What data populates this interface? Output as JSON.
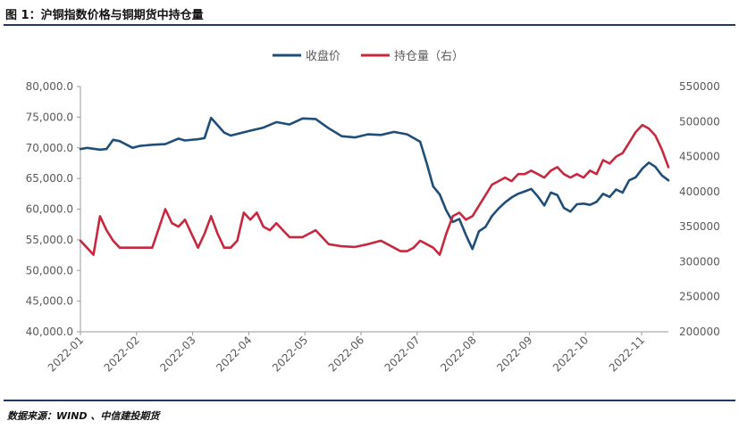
{
  "figure_title": "图 1：沪铜指数价格与铜期货中持仓量",
  "source_text": "数据来源：WIND 、中信建投期货",
  "colors": {
    "price": "#1f4e79",
    "oi": "#c8283f",
    "rule": "#1f3864",
    "axis": "#9a9a9a",
    "text": "#595959"
  },
  "chart_data": {
    "type": "line",
    "title": "",
    "legend_position": "top-center",
    "grid": false,
    "x_ticks": [
      "2022-01",
      "2022-02",
      "2022-03",
      "2022-04",
      "2022-05",
      "2022-06",
      "2022-07",
      "2022-08",
      "2022-09",
      "2022-10",
      "2022-11"
    ],
    "x_range": [
      2022.0,
      2022.9
    ],
    "y_left": {
      "ticks": [
        "40,000.0",
        "45,000.0",
        "50,000.0",
        "55,000.0",
        "60,000.0",
        "65,000.0",
        "70,000.0",
        "75,000.0",
        "80,000.0"
      ],
      "range": [
        40000,
        80000
      ]
    },
    "y_right": {
      "ticks": [
        "200000",
        "250000",
        "300000",
        "350000",
        "400000",
        "450000",
        "500000",
        "550000"
      ],
      "range": [
        200000,
        550000
      ]
    },
    "series": [
      {
        "name": "收盘价",
        "axis": "left",
        "color": "#1f4e79",
        "x": [
          2022.0,
          2022.01,
          2022.03,
          2022.04,
          2022.05,
          2022.06,
          2022.08,
          2022.09,
          2022.1,
          2022.11,
          2022.13,
          2022.15,
          2022.16,
          2022.18,
          2022.19,
          2022.2,
          2022.22,
          2022.23,
          2022.26,
          2022.28,
          2022.3,
          2022.32,
          2022.34,
          2022.36,
          2022.38,
          2022.4,
          2022.42,
          2022.44,
          2022.46,
          2022.48,
          2022.5,
          2022.52,
          2022.53,
          2022.54,
          2022.55,
          2022.56,
          2022.57,
          2022.58,
          2022.59,
          2022.6,
          2022.61,
          2022.62,
          2022.63,
          2022.64,
          2022.65,
          2022.66,
          2022.67,
          2022.68,
          2022.69,
          2022.7,
          2022.71,
          2022.72,
          2022.73,
          2022.74,
          2022.75,
          2022.76,
          2022.77,
          2022.78,
          2022.79,
          2022.8,
          2022.81,
          2022.82,
          2022.83,
          2022.84,
          2022.85,
          2022.86,
          2022.87,
          2022.88,
          2022.89,
          2022.9
        ],
        "y": [
          69800,
          70000,
          69700,
          69800,
          71300,
          71100,
          70000,
          70300,
          70400,
          70500,
          70600,
          71500,
          71200,
          71400,
          71600,
          74900,
          72500,
          72000,
          72800,
          73300,
          74200,
          73800,
          74800,
          74700,
          73200,
          71900,
          71700,
          72200,
          72100,
          72600,
          72200,
          71000,
          67500,
          63700,
          62400,
          59800,
          57900,
          58400,
          55800,
          53500,
          56400,
          57100,
          58900,
          60100,
          61100,
          61900,
          62500,
          62900,
          63300,
          62100,
          60600,
          62700,
          62300,
          60200,
          59600,
          60800,
          60900,
          60700,
          61200,
          62500,
          62000,
          63200,
          62700,
          64700,
          65200,
          66600,
          67600,
          66900,
          65500,
          64700
        ]
      },
      {
        "name": "持仓量（右）",
        "axis": "right",
        "color": "#c8283f",
        "x": [
          2022.0,
          2022.01,
          2022.02,
          2022.03,
          2022.04,
          2022.05,
          2022.06,
          2022.07,
          2022.08,
          2022.09,
          2022.11,
          2022.13,
          2022.14,
          2022.15,
          2022.16,
          2022.18,
          2022.19,
          2022.2,
          2022.21,
          2022.22,
          2022.23,
          2022.24,
          2022.25,
          2022.26,
          2022.27,
          2022.28,
          2022.29,
          2022.3,
          2022.31,
          2022.32,
          2022.34,
          2022.36,
          2022.38,
          2022.4,
          2022.42,
          2022.44,
          2022.46,
          2022.48,
          2022.49,
          2022.5,
          2022.51,
          2022.52,
          2022.53,
          2022.54,
          2022.55,
          2022.56,
          2022.57,
          2022.58,
          2022.59,
          2022.6,
          2022.61,
          2022.62,
          2022.63,
          2022.64,
          2022.65,
          2022.66,
          2022.67,
          2022.68,
          2022.69,
          2022.7,
          2022.71,
          2022.72,
          2022.73,
          2022.74,
          2022.75,
          2022.76,
          2022.77,
          2022.78,
          2022.79,
          2022.8,
          2022.81,
          2022.82,
          2022.83,
          2022.84,
          2022.85,
          2022.86,
          2022.87,
          2022.88,
          2022.89,
          2022.9
        ],
        "y": [
          330000,
          320000,
          310000,
          365000,
          345000,
          330000,
          320000,
          320000,
          320000,
          320000,
          320000,
          375000,
          355000,
          350000,
          360000,
          320000,
          340000,
          365000,
          340000,
          320000,
          320000,
          330000,
          370000,
          360000,
          370000,
          350000,
          345000,
          355000,
          345000,
          335000,
          335000,
          345000,
          325000,
          322000,
          321000,
          325000,
          330000,
          320000,
          315000,
          315000,
          320000,
          330000,
          325000,
          320000,
          310000,
          340000,
          365000,
          370000,
          360000,
          365000,
          380000,
          395000,
          410000,
          415000,
          420000,
          415000,
          425000,
          425000,
          430000,
          425000,
          420000,
          430000,
          435000,
          425000,
          420000,
          425000,
          420000,
          430000,
          425000,
          445000,
          440000,
          450000,
          455000,
          470000,
          485000,
          495000,
          490000,
          480000,
          460000,
          435000
        ]
      }
    ]
  }
}
